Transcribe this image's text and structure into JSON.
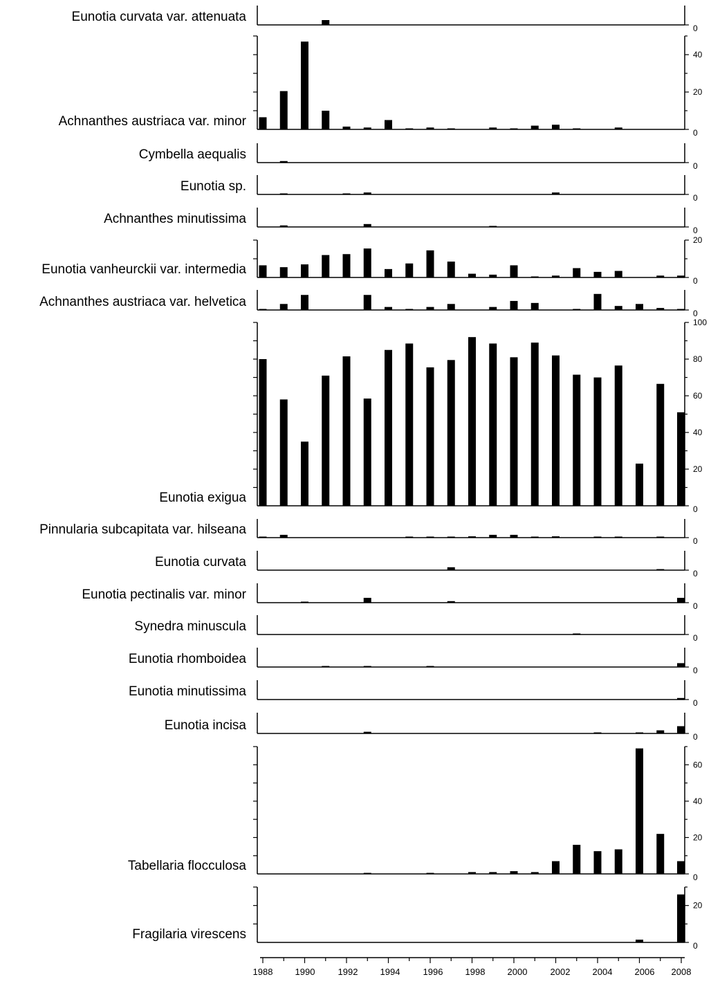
{
  "chart_data": {
    "type": "bar",
    "title": "",
    "xlabel": "",
    "ylabel": "",
    "x": [
      1988,
      1989,
      1990,
      1991,
      1992,
      1993,
      1994,
      1995,
      1996,
      1997,
      1998,
      1999,
      2000,
      2001,
      2002,
      2003,
      2004,
      2005,
      2006,
      2007,
      2008
    ],
    "x_tick_labels": [
      "1988",
      "1990",
      "1992",
      "1994",
      "1996",
      "1998",
      "2000",
      "2002",
      "2004",
      "2006",
      "2008"
    ],
    "colors": {
      "bars": "#000000",
      "axes": "#000000",
      "background": "#ffffff"
    },
    "series": [
      {
        "name": "Eunotia curvata var. attenuata",
        "ylim": [
          0,
          10
        ],
        "right_ticks": [
          "0"
        ],
        "values": [
          0,
          0,
          0,
          2.5,
          0,
          0,
          0,
          0,
          0,
          0,
          0,
          0,
          0,
          0,
          0,
          0,
          0,
          0,
          0,
          0,
          0
        ]
      },
      {
        "name": "Achnanthes austriaca var. minor",
        "ylim": [
          0,
          50
        ],
        "right_ticks": [
          "0",
          "20",
          "40"
        ],
        "values": [
          6.5,
          20.5,
          47,
          10,
          1.5,
          1,
          5,
          0.5,
          1,
          0.5,
          0,
          1,
          0.5,
          2,
          2.5,
          0.5,
          0,
          1,
          0,
          0,
          0
        ]
      },
      {
        "name": "Cymbella aequalis",
        "ylim": [
          0,
          10
        ],
        "right_ticks": [
          "0"
        ],
        "values": [
          0,
          0.8,
          0,
          0,
          0,
          0,
          0,
          0,
          0,
          0,
          0,
          0,
          0,
          0,
          0,
          0,
          0,
          0,
          0,
          0,
          0
        ]
      },
      {
        "name": "Eunotia sp.",
        "ylim": [
          0,
          10
        ],
        "right_ticks": [
          "0"
        ],
        "values": [
          0,
          0.5,
          0,
          0,
          0.5,
          1,
          0,
          0,
          0,
          0,
          0,
          0,
          0,
          0,
          1,
          0,
          0,
          0,
          0,
          0,
          0
        ]
      },
      {
        "name": "Achnanthes minutissima",
        "ylim": [
          0,
          10
        ],
        "right_ticks": [
          "0"
        ],
        "values": [
          0,
          0.8,
          0,
          0,
          0,
          1.5,
          0,
          0,
          0,
          0,
          0,
          0.4,
          0,
          0,
          0,
          0,
          0,
          0,
          0,
          0,
          0
        ]
      },
      {
        "name": "Eunotia vanheurckii var. intermedia",
        "ylim": [
          0,
          20
        ],
        "right_ticks": [
          "0",
          "20"
        ],
        "values": [
          6.5,
          5.5,
          7,
          12,
          12.5,
          15.5,
          4.5,
          7.5,
          14.5,
          8.5,
          2,
          1.5,
          6.5,
          0.5,
          1,
          5,
          3,
          3.5,
          0,
          1,
          1
        ]
      },
      {
        "name": "Achnanthes austriaca var. helvetica",
        "ylim": [
          0,
          10
        ],
        "right_ticks": [
          "0"
        ],
        "values": [
          0.5,
          3,
          7.5,
          0,
          0,
          7.5,
          1.5,
          0.5,
          1.5,
          3,
          0,
          1.5,
          4.5,
          3.5,
          0,
          0.5,
          8,
          2,
          3,
          1,
          0.5
        ]
      },
      {
        "name": "Eunotia exigua",
        "ylim": [
          0,
          100
        ],
        "right_ticks": [
          "0",
          "20",
          "40",
          "60",
          "80",
          "100"
        ],
        "values": [
          80,
          58,
          35,
          71,
          81.5,
          58.5,
          85,
          88.5,
          75.5,
          79.5,
          92,
          88.5,
          81,
          89,
          82,
          71.5,
          70,
          76.5,
          23,
          66.5,
          51
        ]
      },
      {
        "name": "Pinnularia subcapitata var. hilseana",
        "ylim": [
          0,
          10
        ],
        "right_ticks": [
          "0"
        ],
        "values": [
          0.3,
          1.5,
          0,
          0,
          0,
          0,
          0,
          0.3,
          0.3,
          0.3,
          0.7,
          1.5,
          1.5,
          0.3,
          0.7,
          0,
          0.3,
          0.3,
          0,
          0.3,
          0
        ]
      },
      {
        "name": "Eunotia curvata",
        "ylim": [
          0,
          10
        ],
        "right_ticks": [
          "0"
        ],
        "values": [
          0,
          0,
          0,
          0,
          0,
          0,
          0,
          0,
          0,
          1.5,
          0,
          0,
          0,
          0,
          0,
          0,
          0,
          0,
          0,
          0.3,
          0
        ]
      },
      {
        "name": "Eunotia pectinalis var. minor",
        "ylim": [
          0,
          10
        ],
        "right_ticks": [
          "0"
        ],
        "values": [
          0,
          0,
          0.3,
          0,
          0,
          2.5,
          0,
          0,
          0,
          0.8,
          0,
          0,
          0,
          0,
          0,
          0,
          0,
          0,
          0,
          0,
          2.5
        ]
      },
      {
        "name": "Synedra minuscula",
        "ylim": [
          0,
          10
        ],
        "right_ticks": [
          "0"
        ],
        "values": [
          0,
          0,
          0,
          0,
          0,
          0,
          0,
          0,
          0,
          0,
          0,
          0,
          0,
          0,
          0,
          0.3,
          0,
          0,
          0,
          0,
          0
        ]
      },
      {
        "name": "Eunotia rhomboidea",
        "ylim": [
          0,
          10
        ],
        "right_ticks": [
          "0"
        ],
        "values": [
          0,
          0,
          0,
          0.3,
          0,
          0.3,
          0,
          0,
          0.3,
          0,
          0,
          0,
          0,
          0,
          0,
          0,
          0,
          0,
          0,
          0,
          2
        ]
      },
      {
        "name": "Eunotia minutissima",
        "ylim": [
          0,
          10
        ],
        "right_ticks": [
          "0"
        ],
        "values": [
          0,
          0,
          0,
          0,
          0,
          0,
          0,
          0,
          0,
          0,
          0,
          0,
          0,
          0,
          0,
          0,
          0,
          0,
          0,
          0,
          0.8
        ]
      },
      {
        "name": "Eunotia incisa",
        "ylim": [
          0,
          10
        ],
        "right_ticks": [
          "0"
        ],
        "values": [
          0,
          0,
          0,
          0,
          0,
          0.8,
          0,
          0,
          0,
          0,
          0,
          0,
          0,
          0,
          0,
          0,
          0.3,
          0,
          0.3,
          1.5,
          3.5
        ]
      },
      {
        "name": "Tabellaria flocculosa",
        "ylim": [
          0,
          70
        ],
        "right_ticks": [
          "0",
          "20",
          "40",
          "60"
        ],
        "values": [
          0,
          0,
          0,
          0,
          0,
          0.3,
          0,
          0,
          0.3,
          0,
          1,
          1,
          1.5,
          1,
          7,
          16,
          12.5,
          13.5,
          69,
          22,
          7
        ]
      },
      {
        "name": "Fragilaria virescens",
        "ylim": [
          0,
          30
        ],
        "right_ticks": [
          "0",
          "20"
        ],
        "values": [
          0,
          0,
          0,
          0,
          0,
          0,
          0,
          0,
          0,
          0,
          0,
          0,
          0,
          0,
          0,
          0,
          0,
          0,
          1.5,
          0,
          26
        ]
      }
    ]
  }
}
